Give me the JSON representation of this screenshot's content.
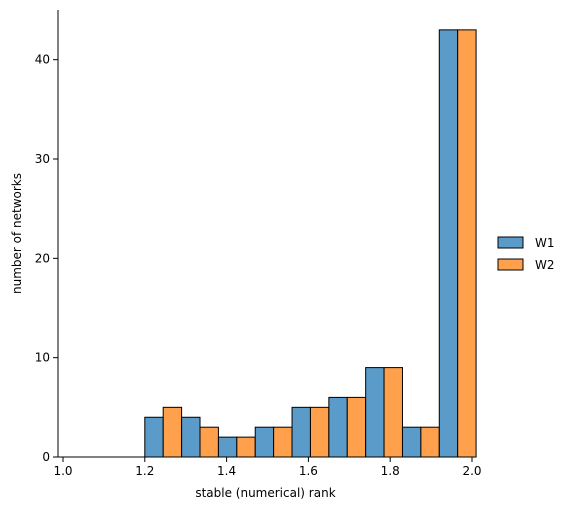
{
  "chart_data": {
    "type": "bar",
    "title": "",
    "xlabel": "stable (numerical) rank",
    "ylabel": "number of networks",
    "xlim": [
      1.0,
      2.0
    ],
    "ylim": [
      0,
      45
    ],
    "xticks": [
      "1.0",
      "1.2",
      "1.4",
      "1.6",
      "1.8",
      "2.0"
    ],
    "yticks": [
      "0",
      "10",
      "20",
      "30",
      "40"
    ],
    "bin_edges": [
      1.2,
      1.29,
      1.38,
      1.47,
      1.56,
      1.65,
      1.74,
      1.83,
      1.92,
      2.01
    ],
    "categories": [
      "1.20–1.29",
      "1.29–1.38",
      "1.38–1.47",
      "1.47–1.56",
      "1.56–1.65",
      "1.65–1.74",
      "1.74–1.83",
      "1.83–1.92",
      "1.92–2.01"
    ],
    "series": [
      {
        "name": "W1",
        "color": "#5b9bc9",
        "values": [
          4,
          4,
          2,
          3,
          5,
          6,
          9,
          3,
          43
        ]
      },
      {
        "name": "W2",
        "color": "#ffa04d",
        "values": [
          5,
          3,
          2,
          3,
          5,
          6,
          9,
          3,
          43
        ]
      }
    ],
    "grid": false,
    "legend_position": "right-center"
  }
}
